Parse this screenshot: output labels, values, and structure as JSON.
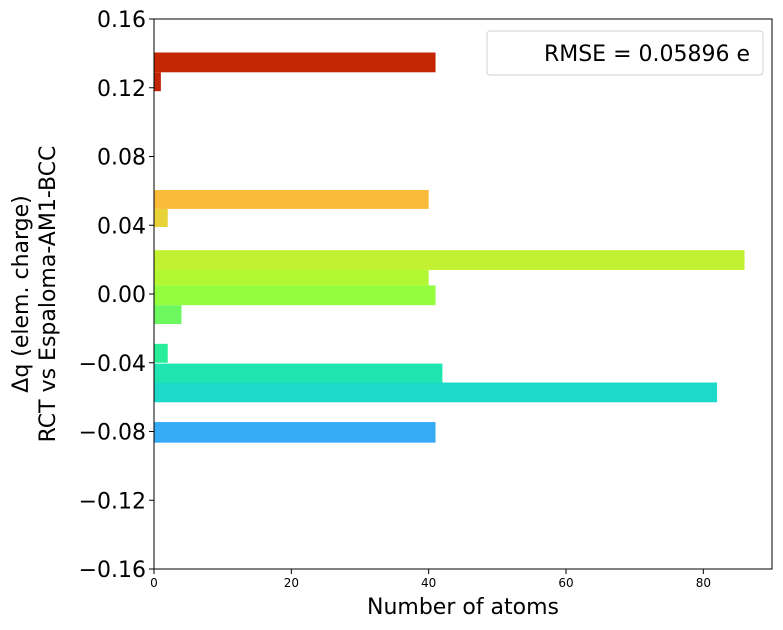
{
  "chart_data": {
    "type": "bar",
    "orientation": "horizontal",
    "title": "",
    "xlabel": "Number of atoms",
    "ylabel_line1": "Δq (elem. charge)",
    "ylabel_line2": "RCT vs Espaloma-AM1-BCC",
    "xlim": [
      0,
      90
    ],
    "ylim": [
      -0.16,
      0.16
    ],
    "bin_width": 0.01,
    "xticks": [
      0,
      20,
      40,
      60,
      80
    ],
    "xtick_labels": [
      "0",
      "20",
      "40",
      "60",
      "80"
    ],
    "yticks": [
      -0.16,
      -0.12,
      -0.08,
      -0.04,
      0.0,
      0.04,
      0.08,
      0.12,
      0.16
    ],
    "ytick_labels": [
      "−0.16",
      "−0.12",
      "−0.08",
      "−0.04",
      "0.00",
      "0.04",
      "0.08",
      "0.12",
      "0.16"
    ],
    "legend": {
      "text": "RMSE = 0.05896 e",
      "placement": "top-right"
    },
    "bars": [
      {
        "y_low": -0.0865,
        "y_high": -0.0745,
        "count": 41,
        "color": "#36abf5"
      },
      {
        "y_low": -0.063,
        "y_high": -0.0515,
        "count": 82,
        "color": "#1dd9c9"
      },
      {
        "y_low": -0.0515,
        "y_high": -0.0405,
        "count": 42,
        "color": "#1fe6b1"
      },
      {
        "y_low": -0.04,
        "y_high": -0.029,
        "count": 2,
        "color": "#27ec98"
      },
      {
        "y_low": -0.0175,
        "y_high": -0.0065,
        "count": 4,
        "color": "#6cf85e"
      },
      {
        "y_low": -0.0065,
        "y_high": 0.005,
        "count": 41,
        "color": "#94fd3e"
      },
      {
        "y_low": 0.005,
        "y_high": 0.014,
        "count": 40,
        "color": "#b1f832"
      },
      {
        "y_low": 0.014,
        "y_high": 0.0255,
        "count": 86,
        "color": "#c2f132"
      },
      {
        "y_low": 0.039,
        "y_high": 0.0495,
        "count": 2,
        "color": "#e7d238"
      },
      {
        "y_low": 0.0495,
        "y_high": 0.0605,
        "count": 40,
        "color": "#fabb3a"
      },
      {
        "y_low": 0.118,
        "y_high": 0.129,
        "count": 1,
        "color": "#c02306"
      },
      {
        "y_low": 0.129,
        "y_high": 0.1405,
        "count": 41,
        "color": "#c42503"
      }
    ]
  }
}
